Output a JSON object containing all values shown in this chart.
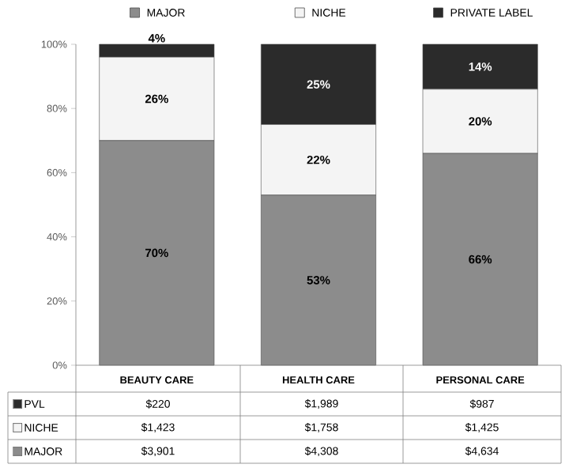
{
  "chart_data": {
    "type": "bar",
    "stacked": true,
    "categories": [
      "BEAUTY CARE",
      "HEALTH CARE",
      "PERSONAL CARE"
    ],
    "series": [
      {
        "name": "MAJOR",
        "color": "#8c8c8c",
        "values": [
          70,
          53,
          66
        ],
        "value_labels": [
          "70%",
          "53%",
          "66%"
        ]
      },
      {
        "name": "NICHE",
        "color": "#f4f4f4",
        "values": [
          26,
          22,
          20
        ],
        "value_labels": [
          "26%",
          "22%",
          "20%"
        ]
      },
      {
        "name": "PRIVATE LABEL",
        "color": "#2b2b2b",
        "values": [
          4,
          25,
          14
        ],
        "value_labels": [
          "4%",
          "25%",
          "14%"
        ]
      }
    ],
    "ylim": [
      0,
      100
    ],
    "yticks": [
      {
        "value": 0,
        "label": "0%"
      },
      {
        "value": 20,
        "label": "20%"
      },
      {
        "value": 40,
        "label": "40%"
      },
      {
        "value": 60,
        "label": "60%"
      },
      {
        "value": 80,
        "label": "80%"
      },
      {
        "value": 100,
        "label": "100%"
      }
    ],
    "grid": false,
    "legend": "top",
    "annotations": [
      "PVL",
      "$220",
      "$1,989",
      "$987",
      "NICHE",
      "$1,423",
      "$1,758",
      "$1,425",
      "MAJOR",
      "$3,901",
      "$4,308",
      "$4,634"
    ]
  }
}
